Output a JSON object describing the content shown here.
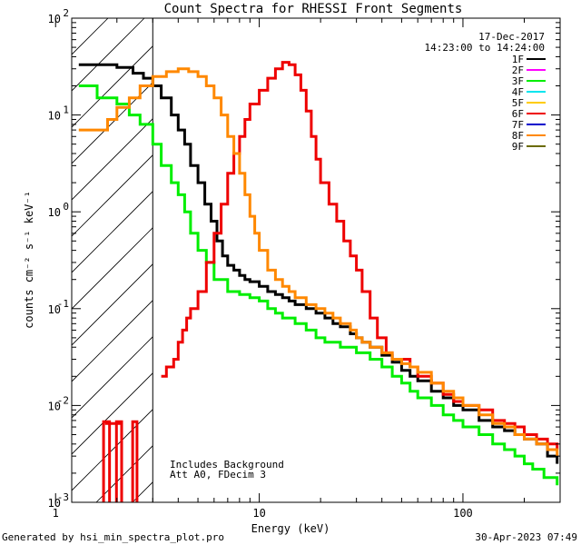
{
  "chart_data": {
    "type": "line",
    "title": "Count Spectra for RHESSI Front Segments",
    "xlabel": "Energy (keV)",
    "ylabel": "counts cm⁻² s⁻¹ keV⁻¹",
    "xscale": "log",
    "yscale": "log",
    "xlim": [
      1.2,
      300
    ],
    "ylim": [
      0.001,
      100
    ],
    "x_ticks": [
      {
        "value": 1,
        "label": "1"
      },
      {
        "value": 10,
        "label": "10"
      },
      {
        "value": 100,
        "label": "100"
      }
    ],
    "y_ticks": [
      {
        "value": 0.001,
        "base": "10",
        "exp": "-3"
      },
      {
        "value": 0.01,
        "base": "10",
        "exp": "-2"
      },
      {
        "value": 0.1,
        "base": "10",
        "exp": "-1"
      },
      {
        "value": 1,
        "base": "10",
        "exp": "0"
      },
      {
        "value": 10,
        "base": "10",
        "exp": "1"
      },
      {
        "value": 100,
        "base": "10",
        "exp": "2"
      }
    ],
    "date": "17-Dec-2017",
    "time_range": "14:23:00 to 14:24:00",
    "legend": [
      {
        "label": "1F",
        "color": "#000000"
      },
      {
        "label": "2F",
        "color": "#ff00ff"
      },
      {
        "label": "3F",
        "color": "#00ee00"
      },
      {
        "label": "4F",
        "color": "#00e5ee"
      },
      {
        "label": "5F",
        "color": "#ffcc00"
      },
      {
        "label": "6F",
        "color": "#ee0000"
      },
      {
        "label": "7F",
        "color": "#0000cc"
      },
      {
        "label": "8F",
        "color": "#ff8800"
      },
      {
        "label": "9F",
        "color": "#6b6b00"
      }
    ],
    "annotations": [
      "Includes Background",
      "Att A0, FDecim 3"
    ],
    "hatched_region_below_keV": 3,
    "series": [
      {
        "name": "1F",
        "color": "#000000",
        "points": [
          [
            1.3,
            33
          ],
          [
            1.7,
            33
          ],
          [
            2.0,
            31
          ],
          [
            2.4,
            27
          ],
          [
            2.7,
            24
          ],
          [
            3.0,
            20
          ],
          [
            3.3,
            15
          ],
          [
            3.7,
            10
          ],
          [
            4.0,
            7
          ],
          [
            4.3,
            5
          ],
          [
            4.6,
            3
          ],
          [
            5.0,
            2
          ],
          [
            5.4,
            1.2
          ],
          [
            5.8,
            0.8
          ],
          [
            6.2,
            0.5
          ],
          [
            6.6,
            0.35
          ],
          [
            7.0,
            0.28
          ],
          [
            7.5,
            0.25
          ],
          [
            8.0,
            0.22
          ],
          [
            8.5,
            0.2
          ],
          [
            9.0,
            0.19
          ],
          [
            10,
            0.17
          ],
          [
            11,
            0.15
          ],
          [
            12,
            0.14
          ],
          [
            13,
            0.13
          ],
          [
            14,
            0.12
          ],
          [
            15,
            0.11
          ],
          [
            17,
            0.1
          ],
          [
            19,
            0.09
          ],
          [
            21,
            0.08
          ],
          [
            23,
            0.07
          ],
          [
            25,
            0.065
          ],
          [
            28,
            0.055
          ],
          [
            30,
            0.05
          ],
          [
            32,
            0.045
          ],
          [
            35,
            0.04
          ],
          [
            40,
            0.033
          ],
          [
            45,
            0.028
          ],
          [
            50,
            0.023
          ],
          [
            55,
            0.02
          ],
          [
            60,
            0.018
          ],
          [
            70,
            0.014
          ],
          [
            80,
            0.012
          ],
          [
            90,
            0.01
          ],
          [
            100,
            0.009
          ],
          [
            120,
            0.007
          ],
          [
            140,
            0.006
          ],
          [
            160,
            0.0055
          ],
          [
            180,
            0.005
          ],
          [
            200,
            0.0045
          ],
          [
            230,
            0.004
          ],
          [
            260,
            0.003
          ],
          [
            290,
            0.0025
          ]
        ]
      },
      {
        "name": "3F",
        "color": "#00ee00",
        "points": [
          [
            1.3,
            20
          ],
          [
            1.6,
            15
          ],
          [
            2.0,
            13
          ],
          [
            2.3,
            10
          ],
          [
            2.6,
            8
          ],
          [
            3.0,
            5
          ],
          [
            3.3,
            3
          ],
          [
            3.7,
            2
          ],
          [
            4.0,
            1.5
          ],
          [
            4.3,
            1
          ],
          [
            4.6,
            0.6
          ],
          [
            5.0,
            0.4
          ],
          [
            5.5,
            0.3
          ],
          [
            6.0,
            0.2
          ],
          [
            7.0,
            0.15
          ],
          [
            8.0,
            0.14
          ],
          [
            9.0,
            0.13
          ],
          [
            10,
            0.12
          ],
          [
            11,
            0.1
          ],
          [
            12,
            0.09
          ],
          [
            13,
            0.08
          ],
          [
            15,
            0.07
          ],
          [
            17,
            0.06
          ],
          [
            19,
            0.05
          ],
          [
            21,
            0.045
          ],
          [
            25,
            0.04
          ],
          [
            30,
            0.035
          ],
          [
            35,
            0.03
          ],
          [
            40,
            0.025
          ],
          [
            45,
            0.02
          ],
          [
            50,
            0.017
          ],
          [
            55,
            0.014
          ],
          [
            60,
            0.012
          ],
          [
            70,
            0.01
          ],
          [
            80,
            0.008
          ],
          [
            90,
            0.007
          ],
          [
            100,
            0.006
          ],
          [
            120,
            0.005
          ],
          [
            140,
            0.004
          ],
          [
            160,
            0.0035
          ],
          [
            180,
            0.003
          ],
          [
            200,
            0.0025
          ],
          [
            220,
            0.0022
          ],
          [
            250,
            0.0018
          ],
          [
            290,
            0.0015
          ]
        ]
      },
      {
        "name": "6F",
        "color": "#ee0000",
        "points": [
          [
            3.3,
            0.02
          ],
          [
            3.5,
            0.025
          ],
          [
            3.8,
            0.03
          ],
          [
            4.0,
            0.045
          ],
          [
            4.2,
            0.06
          ],
          [
            4.4,
            0.08
          ],
          [
            4.6,
            0.1
          ],
          [
            5.0,
            0.15
          ],
          [
            5.5,
            0.3
          ],
          [
            6.0,
            0.6
          ],
          [
            6.5,
            1.2
          ],
          [
            7.0,
            2.5
          ],
          [
            7.5,
            4
          ],
          [
            8.0,
            6
          ],
          [
            8.5,
            9
          ],
          [
            9.0,
            13
          ],
          [
            10,
            18
          ],
          [
            11,
            24
          ],
          [
            12,
            30
          ],
          [
            13,
            35
          ],
          [
            14,
            33
          ],
          [
            15,
            26
          ],
          [
            16,
            18
          ],
          [
            17,
            11
          ],
          [
            18,
            6
          ],
          [
            19,
            3.5
          ],
          [
            20,
            2
          ],
          [
            22,
            1.2
          ],
          [
            24,
            0.8
          ],
          [
            26,
            0.5
          ],
          [
            28,
            0.35
          ],
          [
            30,
            0.25
          ],
          [
            32,
            0.15
          ],
          [
            35,
            0.08
          ],
          [
            38,
            0.05
          ],
          [
            42,
            0.035
          ],
          [
            45,
            0.03
          ],
          [
            50,
            0.03
          ],
          [
            55,
            0.025
          ],
          [
            60,
            0.02
          ],
          [
            70,
            0.017
          ],
          [
            80,
            0.013
          ],
          [
            90,
            0.011
          ],
          [
            100,
            0.01
          ],
          [
            120,
            0.009
          ],
          [
            140,
            0.007
          ],
          [
            160,
            0.0065
          ],
          [
            180,
            0.006
          ],
          [
            200,
            0.005
          ],
          [
            230,
            0.0045
          ],
          [
            260,
            0.004
          ],
          [
            290,
            0.0035
          ]
        ]
      },
      {
        "name": "6F-low",
        "color": "#ee0000",
        "points": [
          [
            1.75,
            0.0065
          ],
          [
            1.9,
            0.0065
          ],
          [
            2.0,
            0.0065
          ],
          [
            2.1,
            0.0065
          ]
        ]
      },
      {
        "name": "8F",
        "color": "#ff8800",
        "points": [
          [
            1.3,
            7
          ],
          [
            1.6,
            7
          ],
          [
            1.8,
            9
          ],
          [
            2.0,
            12
          ],
          [
            2.3,
            15
          ],
          [
            2.6,
            20
          ],
          [
            3.0,
            25
          ],
          [
            3.5,
            28
          ],
          [
            4.0,
            30
          ],
          [
            4.5,
            28
          ],
          [
            5.0,
            25
          ],
          [
            5.5,
            20
          ],
          [
            6.0,
            15
          ],
          [
            6.5,
            10
          ],
          [
            7.0,
            6
          ],
          [
            7.5,
            4
          ],
          [
            8.0,
            2.5
          ],
          [
            8.5,
            1.5
          ],
          [
            9.0,
            0.9
          ],
          [
            9.5,
            0.6
          ],
          [
            10,
            0.4
          ],
          [
            11,
            0.25
          ],
          [
            12,
            0.2
          ],
          [
            13,
            0.17
          ],
          [
            14,
            0.15
          ],
          [
            15,
            0.13
          ],
          [
            17,
            0.11
          ],
          [
            19,
            0.1
          ],
          [
            21,
            0.09
          ],
          [
            23,
            0.08
          ],
          [
            25,
            0.07
          ],
          [
            28,
            0.06
          ],
          [
            30,
            0.05
          ],
          [
            32,
            0.045
          ],
          [
            35,
            0.04
          ],
          [
            40,
            0.035
          ],
          [
            45,
            0.03
          ],
          [
            50,
            0.027
          ],
          [
            55,
            0.025
          ],
          [
            60,
            0.022
          ],
          [
            70,
            0.017
          ],
          [
            80,
            0.014
          ],
          [
            90,
            0.012
          ],
          [
            100,
            0.01
          ],
          [
            120,
            0.008
          ],
          [
            140,
            0.0065
          ],
          [
            160,
            0.006
          ],
          [
            180,
            0.005
          ],
          [
            200,
            0.0045
          ],
          [
            230,
            0.004
          ],
          [
            260,
            0.0035
          ],
          [
            290,
            0.003
          ]
        ]
      }
    ]
  },
  "footer": {
    "left": "Generated by hsi_min_spectra_plot.pro",
    "right": "30-Apr-2023 07:49"
  }
}
